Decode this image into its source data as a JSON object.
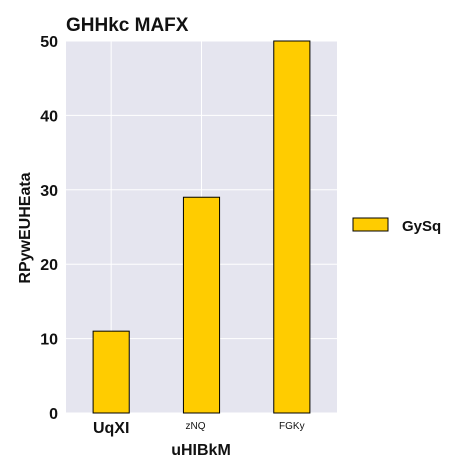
{
  "chart_data": {
    "type": "bar",
    "title": "GHHkc MAFX",
    "xlabel": "uHIBkM",
    "ylabel": "RPywEUHEata",
    "categories": [
      "UqXI",
      "zNQ",
      "FGKy"
    ],
    "series": [
      {
        "name": "GySq",
        "values": [
          11,
          29,
          50
        ],
        "color": "#FFCC00"
      }
    ],
    "ylim": [
      0,
      50
    ],
    "yticks": [
      0,
      10,
      20,
      30,
      40,
      50
    ],
    "grid": true,
    "legend_position": "right",
    "plot_background": "#E5E5EF"
  }
}
